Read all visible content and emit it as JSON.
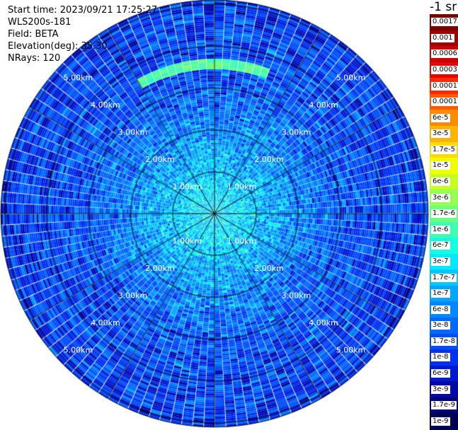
{
  "header": {
    "start_time": "Start time: 2023/09/21 17:25:27",
    "instrument": "WLS200s-181",
    "field": "Field: BETA",
    "elevation": "Elevation(deg): 35.30",
    "nrays": "NRays: 120"
  },
  "colorbar": {
    "unit": "-1 sr",
    "levels": [
      {
        "label": "0.0017",
        "color": "#7a0000"
      },
      {
        "label": "0.001",
        "color": "#a00000"
      },
      {
        "label": "0.0006",
        "color": "#c80000"
      },
      {
        "label": "0.0003",
        "color": "#e80000"
      },
      {
        "label": "0.00017",
        "color": "#ff2a00"
      },
      {
        "label": "0.0001",
        "color": "#ff5a00"
      },
      {
        "label": "6e-5",
        "color": "#ff8a00"
      },
      {
        "label": "3e-5",
        "color": "#ffb400"
      },
      {
        "label": "1.7e-5",
        "color": "#ffdc00"
      },
      {
        "label": "1e-5",
        "color": "#f0ff00"
      },
      {
        "label": "6e-6",
        "color": "#c4ff1e"
      },
      {
        "label": "3e-6",
        "color": "#96ff52"
      },
      {
        "label": "1.7e-6",
        "color": "#6aff80"
      },
      {
        "label": "1e-6",
        "color": "#3cffb4"
      },
      {
        "label": "6e-7",
        "color": "#14ffe0"
      },
      {
        "label": "3e-7",
        "color": "#00eaff"
      },
      {
        "label": "1.7e-7",
        "color": "#00c8ff"
      },
      {
        "label": "1e-7",
        "color": "#00a6ff"
      },
      {
        "label": "6e-8",
        "color": "#0088ff"
      },
      {
        "label": "3e-8",
        "color": "#006aff"
      },
      {
        "label": "1.7e-8",
        "color": "#004cff"
      },
      {
        "label": "1e-8",
        "color": "#0030f0"
      },
      {
        "label": "6e-9",
        "color": "#0018d0"
      },
      {
        "label": "3e-9",
        "color": "#0008a8"
      },
      {
        "label": "1.7e-9",
        "color": "#00007c"
      },
      {
        "label": "1e-9",
        "color": "#000050"
      }
    ]
  },
  "chart_data": {
    "type": "heatmap",
    "projection": "polar PPI",
    "field": "BETA",
    "range_rings_km": [
      1,
      2,
      3,
      4,
      5
    ],
    "range_labels": [
      "1.00km",
      "2.00km",
      "3.00km",
      "4.00km",
      "5.00km"
    ],
    "max_range_km": 5.1,
    "azimuth_spokes_deg": [
      0,
      30,
      60,
      90,
      120,
      150,
      180,
      210,
      240,
      270,
      300,
      330
    ],
    "nrays": 120,
    "gate_km": 0.05,
    "grid": true,
    "value_profile": [
      {
        "range_km": 0.0,
        "log10_beta": -6.6
      },
      {
        "range_km": 0.6,
        "log10_beta": -6.65
      },
      {
        "range_km": 1.2,
        "log10_beta": -6.9
      },
      {
        "range_km": 1.8,
        "log10_beta": -7.2
      },
      {
        "range_km": 2.5,
        "log10_beta": -7.5
      },
      {
        "range_km": 3.2,
        "log10_beta": -7.75
      },
      {
        "range_km": 4.0,
        "log10_beta": -7.85
      },
      {
        "range_km": 4.6,
        "log10_beta": -7.9
      },
      {
        "range_km": 5.1,
        "log10_beta": -8.0
      }
    ],
    "features": [
      {
        "azimuth_from_deg": -30,
        "azimuth_to_deg": 20,
        "range_from_km": 3.45,
        "range_to_km": 3.7,
        "log10_beta": -5.9
      }
    ]
  }
}
